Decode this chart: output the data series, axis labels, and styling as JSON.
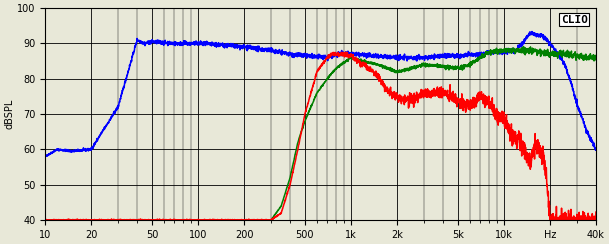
{
  "title": "CLIO",
  "ylabel": "dBSPL",
  "xlabel": "Hz",
  "xlim": [
    10,
    40000
  ],
  "ylim": [
    40,
    100
  ],
  "yticks": [
    40,
    50,
    60,
    70,
    80,
    90,
    100
  ],
  "xticks": [
    10,
    20,
    50,
    100,
    200,
    500,
    1000,
    2000,
    5000,
    10000,
    20000,
    40000
  ],
  "xticklabels": [
    "10",
    "20",
    "50",
    "100",
    "200",
    "500",
    "1k",
    "2k",
    "5k",
    "10k",
    "Hz",
    "40k"
  ],
  "background_color": "#e8e8d8",
  "grid_color": "#000000",
  "blue_color": "#0000ff",
  "green_color": "#008000",
  "red_color": "#ff0000",
  "line_width": 1.1
}
